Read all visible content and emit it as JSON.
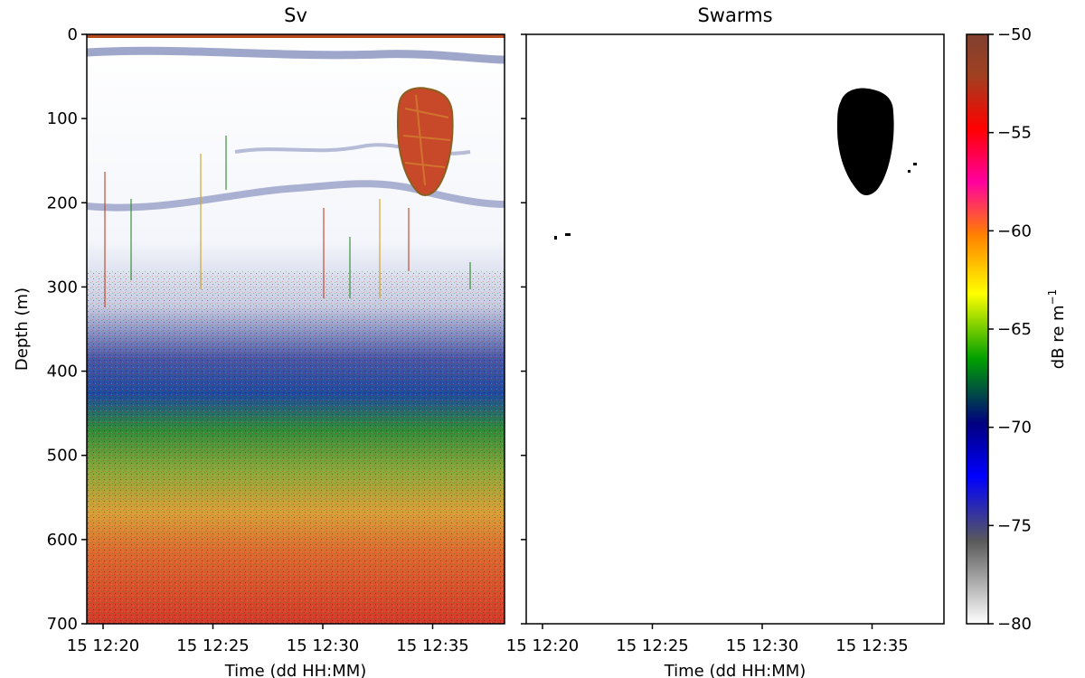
{
  "chart_data": [
    {
      "type": "heatmap",
      "title": "Sv",
      "xlabel": "Time (dd HH:MM)",
      "ylabel": "Depth (m)",
      "x_ticks": [
        "15 12:20",
        "15 12:25",
        "15 12:30",
        "15 12:35"
      ],
      "y_ticks": [
        "0",
        "100",
        "200",
        "300",
        "400",
        "500",
        "600",
        "700"
      ],
      "x_range": [
        "15 12:19",
        "15 12:38"
      ],
      "ylim": [
        700,
        0
      ],
      "y_inverted": true,
      "features": [
        {
          "name": "surface layer",
          "depth_m": [
            15,
            40
          ]
        },
        {
          "name": "scattering layer",
          "depth_m": [
            140,
            260
          ]
        },
        {
          "name": "swarm",
          "time": "15 12:35",
          "depth_m": [
            65,
            190
          ],
          "value_db": -55
        }
      ],
      "depth_profile_db": [
        {
          "depth": 0,
          "value": -55
        },
        {
          "depth": 100,
          "value": -79
        },
        {
          "depth": 300,
          "value": -77
        },
        {
          "depth": 400,
          "value": -70
        },
        {
          "depth": 500,
          "value": -66
        },
        {
          "depth": 600,
          "value": -60
        },
        {
          "depth": 700,
          "value": -56
        }
      ]
    },
    {
      "type": "heatmap",
      "title": "Swarms",
      "xlabel": "Time (dd HH:MM)",
      "x_ticks": [
        "15 12:20",
        "15 12:25",
        "15 12:30",
        "15 12:35"
      ],
      "ylim": [
        700,
        0
      ],
      "detected_regions": [
        {
          "time": "15 12:35",
          "depth_m": [
            65,
            190
          ]
        },
        {
          "time": "15 12:21",
          "depth_m": [
            238,
            246
          ]
        },
        {
          "time": "15 12:37",
          "depth_m": [
            155,
            165
          ]
        }
      ]
    }
  ],
  "colorbar": {
    "label": "dB re m",
    "label_sup": "−1",
    "ticks": [
      "−50",
      "−55",
      "−60",
      "−65",
      "−70",
      "−75",
      "−80"
    ],
    "range": [
      -80,
      -50
    ],
    "colors": [
      "#ffffff",
      "#5a5a5a",
      "#0000ff",
      "#000080",
      "#00a000",
      "#ffff00",
      "#ff8000",
      "#ff00a0",
      "#ff0000",
      "#a04020",
      "#804030"
    ]
  }
}
